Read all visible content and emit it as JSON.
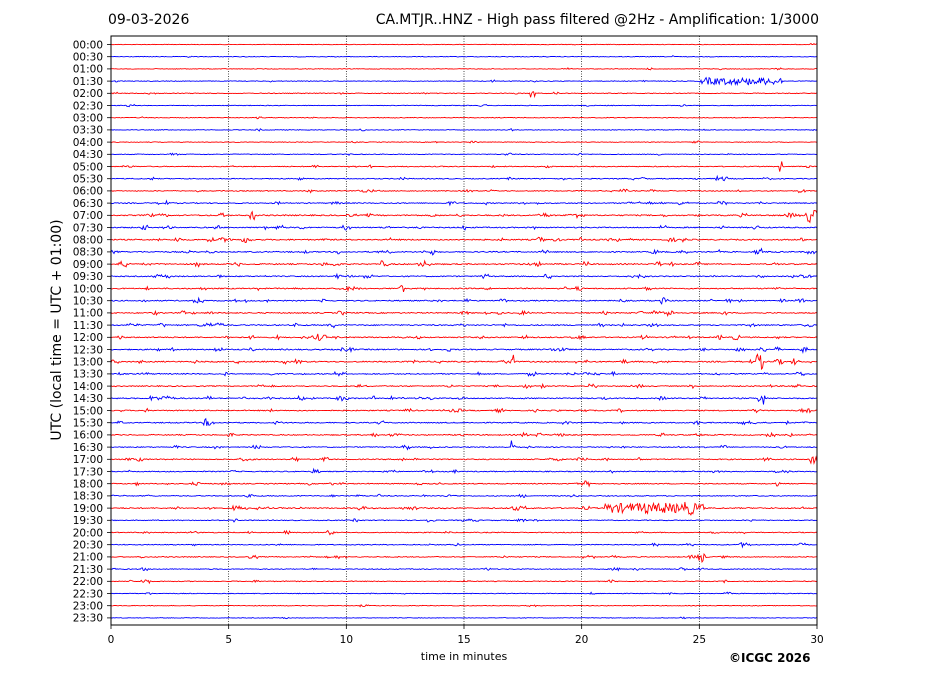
{
  "header": {
    "date": "09-03-2026",
    "title": "CA.MTJR..HNZ - High pass filtered @2Hz - Amplification: 1/3000"
  },
  "footer": {
    "credit": "©ICGC 2026"
  },
  "colors": {
    "red": "#ff0000",
    "blue": "#0000ff",
    "grid": "#000000"
  },
  "chart_data": {
    "type": "line",
    "title": "CA.MTJR..HNZ - High pass filtered @2Hz - Amplification: 1/3000",
    "xlabel": "time in minutes",
    "ylabel": "UTC (local time = UTC + 01:00)",
    "xlim": [
      0,
      30
    ],
    "x_ticks": [
      0,
      5,
      10,
      15,
      20,
      25,
      30
    ],
    "vertical_gridlines_at": [
      5,
      10,
      15,
      20,
      25
    ],
    "grid": "vertical dotted",
    "rows": [
      "00:00",
      "00:30",
      "01:00",
      "01:30",
      "02:00",
      "02:30",
      "03:00",
      "03:30",
      "04:00",
      "04:30",
      "05:00",
      "05:30",
      "06:00",
      "06:30",
      "07:00",
      "07:30",
      "08:00",
      "08:30",
      "09:00",
      "09:30",
      "10:00",
      "10:30",
      "11:00",
      "11:30",
      "12:00",
      "12:30",
      "13:00",
      "13:30",
      "14:00",
      "14:30",
      "15:00",
      "15:30",
      "16:00",
      "16:30",
      "17:00",
      "17:30",
      "18:00",
      "18:30",
      "19:00",
      "19:30",
      "20:00",
      "20:30",
      "21:00",
      "21:30",
      "22:00",
      "22:30",
      "23:00",
      "23:30"
    ],
    "row_colors": [
      "red",
      "blue"
    ],
    "row_activity": [
      0.05,
      0.05,
      0.1,
      0.12,
      0.15,
      0.1,
      0.08,
      0.12,
      0.1,
      0.15,
      0.25,
      0.3,
      0.3,
      0.4,
      0.55,
      0.45,
      0.55,
      0.5,
      0.55,
      0.45,
      0.45,
      0.45,
      0.45,
      0.5,
      0.5,
      0.5,
      0.55,
      0.4,
      0.4,
      0.5,
      0.4,
      0.4,
      0.4,
      0.35,
      0.4,
      0.35,
      0.35,
      0.3,
      0.5,
      0.25,
      0.25,
      0.25,
      0.3,
      0.25,
      0.2,
      0.15,
      0.05,
      0.05
    ],
    "events": [
      {
        "row": "01:30",
        "start_min": 25.0,
        "end_min": 28.5,
        "amp": 0.45
      },
      {
        "row": "02:00",
        "start_min": 17.8,
        "end_min": 18.0,
        "amp": 0.6
      },
      {
        "row": "05:00",
        "start_min": 28.4,
        "end_min": 28.5,
        "amp": 0.7
      },
      {
        "row": "07:00",
        "start_min": 29.5,
        "end_min": 30.0,
        "amp": 0.8
      },
      {
        "row": "07:00",
        "start_min": 5.9,
        "end_min": 6.1,
        "amp": 0.8
      },
      {
        "row": "13:00",
        "start_min": 16.9,
        "end_min": 17.1,
        "amp": 1.6
      },
      {
        "row": "13:00",
        "start_min": 27.4,
        "end_min": 27.7,
        "amp": 1.0
      },
      {
        "row": "14:30",
        "start_min": 27.5,
        "end_min": 27.8,
        "amp": 0.9
      },
      {
        "row": "16:30",
        "start_min": 17.0,
        "end_min": 17.2,
        "amp": 0.9
      },
      {
        "row": "17:00",
        "start_min": 29.7,
        "end_min": 30.0,
        "amp": 0.8
      },
      {
        "row": "19:00",
        "start_min": 21.0,
        "end_min": 25.2,
        "amp": 0.6
      },
      {
        "row": "21:00",
        "start_min": 24.9,
        "end_min": 25.3,
        "amp": 0.7
      }
    ]
  }
}
